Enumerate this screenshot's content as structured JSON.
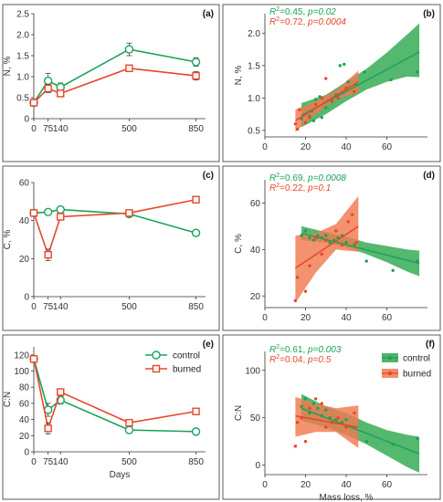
{
  "colors": {
    "control": "#1aa35a",
    "burned": "#e8462a",
    "control_band": "#2fa84f",
    "burned_band": "#f07a4f"
  },
  "chart_data": [
    {
      "type": "line",
      "panel_label": "(a)",
      "xlabel": "",
      "ylabel": "N, %",
      "x": [
        0,
        75,
        140,
        500,
        850
      ],
      "xticks": [
        "0",
        "75",
        "140",
        "500",
        "850"
      ],
      "xlim": [
        0,
        900
      ],
      "ylim": [
        0,
        2.5
      ],
      "yticks": [
        {
          "v": 0,
          "t": "0"
        },
        {
          "v": 0.5,
          "t": "0.5"
        },
        {
          "v": 1,
          "t": "1.0"
        },
        {
          "v": 1.5,
          "t": "1.5"
        },
        {
          "v": 2,
          "t": "2.0"
        },
        {
          "v": 2.5,
          "t": "2.5"
        }
      ],
      "series": [
        {
          "name": "control",
          "values": [
            0.38,
            0.9,
            0.75,
            1.65,
            1.35
          ],
          "errors": [
            0.07,
            0.18,
            0.1,
            0.15,
            0.1
          ]
        },
        {
          "name": "burned",
          "values": [
            0.38,
            0.72,
            0.6,
            1.2,
            1.02
          ],
          "errors": [
            0.07,
            0.1,
            0.07,
            0.07,
            0.1
          ]
        }
      ]
    },
    {
      "type": "scatter",
      "panel_label": "(b)",
      "xlabel": "",
      "ylabel": "N, %",
      "xlim": [
        0,
        80
      ],
      "ylim": [
        0.4,
        2.3
      ],
      "xticks": [
        {
          "v": 0,
          "t": "0"
        },
        {
          "v": 20,
          "t": "20"
        },
        {
          "v": 40,
          "t": "40"
        },
        {
          "v": 60,
          "t": "60"
        }
      ],
      "yticks": [
        {
          "v": 0.5,
          "t": "0.5"
        },
        {
          "v": 1,
          "t": "1.0"
        },
        {
          "v": 1.5,
          "t": "1.5"
        },
        {
          "v": 2,
          "t": "2.0"
        }
      ],
      "stats": [
        {
          "r2": "0.45",
          "p": "p=0.02",
          "series": "control"
        },
        {
          "r2": "0.72",
          "p": "p=0.0004",
          "series": "burned"
        }
      ],
      "series": [
        {
          "name": "control",
          "points": [
            [
              18,
              0.68
            ],
            [
              22,
              0.72
            ],
            [
              23,
              0.8
            ],
            [
              24,
              0.65
            ],
            [
              25,
              0.98
            ],
            [
              27,
              1.02
            ],
            [
              28,
              0.7
            ],
            [
              30,
              0.85
            ],
            [
              33,
              0.95
            ],
            [
              35,
              1.05
            ],
            [
              37,
              1.5
            ],
            [
              39,
              1.52
            ],
            [
              41,
              1.25
            ],
            [
              45,
              1.2
            ],
            [
              49,
              1.4
            ],
            [
              62,
              1.28
            ],
            [
              75,
              1.4
            ]
          ],
          "fit": [
            [
              18,
              0.73
            ],
            [
              76,
              1.71
            ]
          ],
          "band_upper": [
            [
              18,
              0.92
            ],
            [
              30,
              1.05
            ],
            [
              40,
              1.25
            ],
            [
              50,
              1.45
            ],
            [
              60,
              1.7
            ],
            [
              70,
              1.98
            ],
            [
              76,
              2.15
            ]
          ],
          "band_lower": [
            [
              18,
              0.55
            ],
            [
              30,
              0.75
            ],
            [
              40,
              0.95
            ],
            [
              50,
              1.13
            ],
            [
              60,
              1.25
            ],
            [
              70,
              1.33
            ],
            [
              76,
              1.32
            ]
          ]
        },
        {
          "name": "burned",
          "points": [
            [
              15,
              0.6
            ],
            [
              16,
              0.52
            ],
            [
              17,
              0.82
            ],
            [
              20,
              0.62
            ],
            [
              22,
              0.7
            ],
            [
              25,
              0.9
            ],
            [
              28,
              1.0
            ],
            [
              30,
              1.3
            ],
            [
              33,
              0.95
            ],
            [
              36,
              1.0
            ],
            [
              40,
              1.15
            ],
            [
              44,
              1.1
            ]
          ],
          "fit": [
            [
              15,
              0.65
            ],
            [
              46,
              1.25
            ]
          ],
          "band_upper": [
            [
              15,
              0.82
            ],
            [
              25,
              0.95
            ],
            [
              35,
              1.12
            ],
            [
              46,
              1.42
            ]
          ],
          "band_lower": [
            [
              15,
              0.48
            ],
            [
              25,
              0.75
            ],
            [
              35,
              0.98
            ],
            [
              46,
              1.08
            ]
          ]
        }
      ]
    },
    {
      "type": "line",
      "panel_label": "(c)",
      "xlabel": "",
      "ylabel": "C, %",
      "x": [
        0,
        75,
        140,
        500,
        850
      ],
      "xticks": [
        "0",
        "75",
        "140",
        "500",
        "850"
      ],
      "xlim": [
        0,
        900
      ],
      "ylim": [
        0,
        60
      ],
      "yticks": [
        {
          "v": 0,
          "t": "0"
        },
        {
          "v": 20,
          "t": "20"
        },
        {
          "v": 40,
          "t": "40"
        },
        {
          "v": 60,
          "t": "60"
        }
      ],
      "series": [
        {
          "name": "control",
          "values": [
            44,
            44.5,
            45.8,
            43.5,
            33.5
          ],
          "errors": [
            0.8,
            0.7,
            0.8,
            0.8,
            1.5
          ]
        },
        {
          "name": "burned",
          "values": [
            44,
            22,
            42,
            44,
            51
          ],
          "errors": [
            0.8,
            3.0,
            1.2,
            1.0,
            1.3
          ]
        }
      ]
    },
    {
      "type": "scatter",
      "panel_label": "(d)",
      "xlabel": "",
      "ylabel": "C, %",
      "xlim": [
        0,
        80
      ],
      "ylim": [
        15,
        70
      ],
      "xticks": [
        {
          "v": 0,
          "t": "0"
        },
        {
          "v": 20,
          "t": "20"
        },
        {
          "v": 40,
          "t": "40"
        },
        {
          "v": 60,
          "t": "60"
        }
      ],
      "yticks": [
        {
          "v": 20,
          "t": "20"
        },
        {
          "v": 40,
          "t": "40"
        },
        {
          "v": 60,
          "t": "60"
        }
      ],
      "stats": [
        {
          "r2": "0.69",
          "p": "p=0.0008",
          "series": "control"
        },
        {
          "r2": "0.22",
          "p": "p=0.1",
          "series": "burned"
        }
      ],
      "series": [
        {
          "name": "control",
          "points": [
            [
              18,
              46
            ],
            [
              20,
              48
            ],
            [
              22,
              45
            ],
            [
              24,
              44
            ],
            [
              26,
              46
            ],
            [
              28,
              45
            ],
            [
              30,
              46
            ],
            [
              32,
              43
            ],
            [
              34,
              44
            ],
            [
              36,
              45
            ],
            [
              38,
              46
            ],
            [
              40,
              43
            ],
            [
              44,
              42
            ],
            [
              50,
              35
            ],
            [
              63,
              31
            ],
            [
              75,
              35
            ]
          ],
          "fit": [
            [
              18,
              47
            ],
            [
              76,
              34
            ]
          ],
          "band_upper": [
            [
              18,
              50
            ],
            [
              30,
              47.5
            ],
            [
              40,
              45.5
            ],
            [
              50,
              43
            ],
            [
              60,
              41.5
            ],
            [
              70,
              40
            ],
            [
              76,
              39.5
            ]
          ],
          "band_lower": [
            [
              18,
              44
            ],
            [
              30,
              43
            ],
            [
              40,
              41
            ],
            [
              50,
              38
            ],
            [
              60,
              34.5
            ],
            [
              70,
              30.5
            ],
            [
              76,
              28.5
            ]
          ]
        },
        {
          "name": "burned",
          "points": [
            [
              15,
              18
            ],
            [
              16,
              28
            ],
            [
              20,
              22
            ],
            [
              22,
              33
            ],
            [
              25,
              45
            ],
            [
              28,
              38
            ],
            [
              30,
              44
            ],
            [
              35,
              48
            ],
            [
              38,
              42
            ],
            [
              41,
              52
            ],
            [
              43,
              55
            ],
            [
              45,
              43
            ]
          ],
          "fit": [
            [
              15,
              32
            ],
            [
              46,
              50
            ]
          ],
          "band_upper": [
            [
              15,
              46
            ],
            [
              25,
              47
            ],
            [
              35,
              51
            ],
            [
              46,
              63
            ]
          ],
          "band_lower": [
            [
              15,
              17
            ],
            [
              25,
              30
            ],
            [
              35,
              40
            ],
            [
              46,
              39
            ]
          ]
        }
      ]
    },
    {
      "type": "line",
      "panel_label": "(e)",
      "xlabel": "Days",
      "ylabel": "C:N",
      "x": [
        0,
        75,
        140,
        500,
        850
      ],
      "xticks": [
        "0",
        "75",
        "140",
        "500",
        "850"
      ],
      "xlim": [
        0,
        900
      ],
      "ylim": [
        0,
        130
      ],
      "yticks": [
        {
          "v": 0,
          "t": "0"
        },
        {
          "v": 20,
          "t": "20"
        },
        {
          "v": 40,
          "t": "40"
        },
        {
          "v": 60,
          "t": "60"
        },
        {
          "v": 80,
          "t": "80"
        },
        {
          "v": 100,
          "t": "100"
        },
        {
          "v": 120,
          "t": "120"
        }
      ],
      "legend": [
        "control",
        "burned"
      ],
      "series": [
        {
          "name": "control",
          "values": [
            115,
            52,
            64,
            27,
            25
          ],
          "errors": [
            4,
            8,
            5,
            1.5,
            1.5
          ]
        },
        {
          "name": "burned",
          "values": [
            115,
            29,
            74,
            36,
            50
          ],
          "errors": [
            4,
            7,
            4,
            3,
            3
          ]
        }
      ]
    },
    {
      "type": "scatter",
      "panel_label": "(f)",
      "xlabel": "Mass loss, %",
      "ylabel": "C:N",
      "xlim": [
        0,
        80
      ],
      "ylim": [
        -10,
        120
      ],
      "xticks": [
        {
          "v": 0,
          "t": "0"
        },
        {
          "v": 20,
          "t": "20"
        },
        {
          "v": 40,
          "t": "40"
        },
        {
          "v": 60,
          "t": "60"
        }
      ],
      "yticks": [
        {
          "v": 0,
          "t": "0"
        },
        {
          "v": 50,
          "t": "50"
        },
        {
          "v": 100,
          "t": "100"
        }
      ],
      "legend": [
        "control",
        "burned"
      ],
      "stats": [
        {
          "r2": "0.61",
          "p": "p=0.003",
          "series": "control"
        },
        {
          "r2": "0.04",
          "p": "p=0.5",
          "series": "burned"
        }
      ],
      "series": [
        {
          "name": "control",
          "points": [
            [
              18,
              62
            ],
            [
              20,
              70
            ],
            [
              22,
              55
            ],
            [
              24,
              65
            ],
            [
              26,
              60
            ],
            [
              28,
              52
            ],
            [
              30,
              58
            ],
            [
              32,
              50
            ],
            [
              35,
              48
            ],
            [
              38,
              45
            ],
            [
              40,
              48
            ],
            [
              44,
              40
            ],
            [
              50,
              25
            ],
            [
              63,
              22
            ],
            [
              75,
              28
            ]
          ],
          "fit": [
            [
              18,
              60
            ],
            [
              76,
              12
            ]
          ],
          "band_upper": [
            [
              18,
              75
            ],
            [
              30,
              62
            ],
            [
              40,
              55
            ],
            [
              50,
              45
            ],
            [
              60,
              37
            ],
            [
              70,
              32
            ],
            [
              76,
              30
            ]
          ],
          "band_lower": [
            [
              18,
              47
            ],
            [
              30,
              40
            ],
            [
              40,
              32
            ],
            [
              50,
              22
            ],
            [
              60,
              10
            ],
            [
              70,
              -2
            ],
            [
              76,
              -8
            ]
          ]
        },
        {
          "name": "burned",
          "points": [
            [
              15,
              20
            ],
            [
              16,
              45
            ],
            [
              18,
              50
            ],
            [
              20,
              25
            ],
            [
              22,
              60
            ],
            [
              25,
              70
            ],
            [
              28,
              65
            ],
            [
              30,
              40
            ],
            [
              33,
              45
            ],
            [
              36,
              50
            ],
            [
              40,
              40
            ],
            [
              44,
              55
            ]
          ],
          "fit": [
            [
              15,
              52
            ],
            [
              46,
              40
            ]
          ],
          "band_upper": [
            [
              15,
              72
            ],
            [
              25,
              65
            ],
            [
              35,
              60
            ],
            [
              46,
              63
            ]
          ],
          "band_lower": [
            [
              15,
              30
            ],
            [
              25,
              35
            ],
            [
              35,
              35
            ],
            [
              46,
              18
            ]
          ]
        }
      ]
    }
  ]
}
